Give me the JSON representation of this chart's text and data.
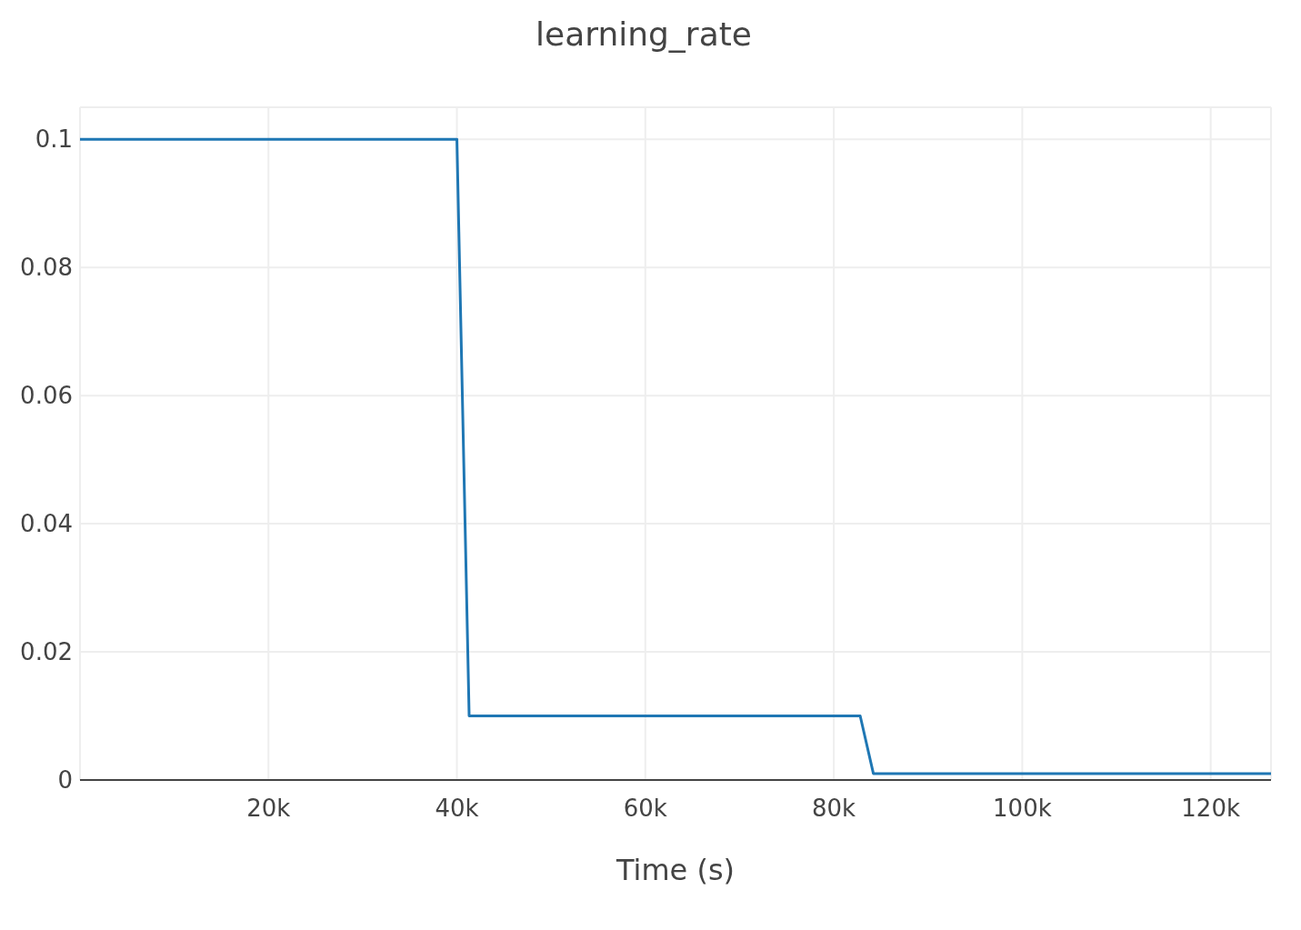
{
  "chart_data": {
    "type": "line",
    "title": "learning_rate",
    "xlabel": "Time (s)",
    "x": [
      0,
      40000,
      41300,
      82800,
      84200,
      126400
    ],
    "series": [
      {
        "color": "#1f77b4",
        "values": [
          0.1,
          0.1,
          0.01,
          0.01,
          0.001,
          0.001
        ]
      }
    ],
    "xlim": [
      0,
      126400
    ],
    "xticks": [
      {
        "value": 20000,
        "label": "20k"
      },
      {
        "value": 40000,
        "label": "40k"
      },
      {
        "value": 60000,
        "label": "60k"
      },
      {
        "value": 80000,
        "label": "80k"
      },
      {
        "value": 100000,
        "label": "100k"
      },
      {
        "value": 120000,
        "label": "120k"
      }
    ],
    "ylim": [
      0,
      0.105
    ],
    "yticks": [
      0,
      0.02,
      0.04,
      0.06,
      0.08,
      0.1
    ],
    "grid": true
  }
}
